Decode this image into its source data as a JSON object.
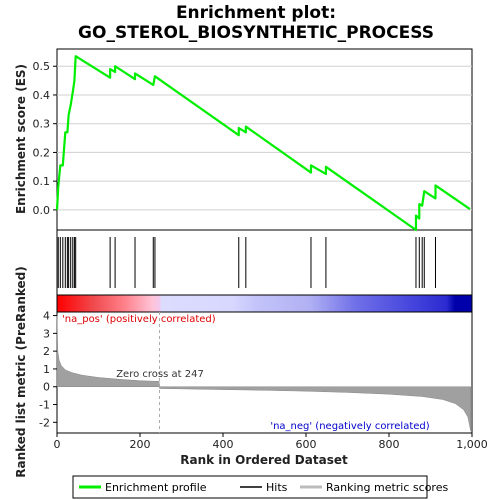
{
  "chart_data": {
    "type": "line",
    "title_line1": "Enrichment plot:",
    "title_line2": "GO_STEROL_BIOSYNTHETIC_PROCESS",
    "es_ylabel": "Enrichment score (ES)",
    "rank_ylabel": "Ranked list metric (PreRanked)",
    "xlabel": "Rank in Ordered Dataset",
    "xlim": [
      0,
      1000
    ],
    "es_ylim": [
      -0.07,
      0.56
    ],
    "rank_ylim": [
      -2.6,
      4.2
    ],
    "x_ticks": [
      "0",
      "200",
      "400",
      "600",
      "800",
      "1,000"
    ],
    "x_tick_values": [
      0,
      200,
      400,
      600,
      800,
      1000
    ],
    "es_ticks": [
      "0.0",
      "0.1",
      "0.2",
      "0.3",
      "0.4",
      "0.5"
    ],
    "es_tick_values": [
      0.0,
      0.1,
      0.2,
      0.3,
      0.4,
      0.5
    ],
    "rank_ticks": [
      "-2",
      "-1",
      "0",
      "1",
      "2",
      "3",
      "4"
    ],
    "rank_tick_values": [
      -2,
      -1,
      0,
      1,
      2,
      3,
      4
    ],
    "zero_cross_label": "Zero cross at 247",
    "zero_cross_rank": 247,
    "pos_label": "'na_pos' (positively correlated)",
    "neg_label": "'na_neg' (negatively correlated)",
    "hits": [
      3,
      8,
      14,
      20,
      25,
      28,
      33,
      38,
      42,
      45,
      128,
      140,
      188,
      232,
      236,
      438,
      455,
      612,
      648,
      865,
      873,
      880,
      885,
      912
    ],
    "es_points": [
      [
        0,
        0.0
      ],
      [
        3,
        0.08
      ],
      [
        8,
        0.155
      ],
      [
        14,
        0.155
      ],
      [
        20,
        0.27
      ],
      [
        25,
        0.27
      ],
      [
        28,
        0.33
      ],
      [
        33,
        0.365
      ],
      [
        38,
        0.41
      ],
      [
        42,
        0.45
      ],
      [
        45,
        0.535
      ],
      [
        128,
        0.46
      ],
      [
        128,
        0.49
      ],
      [
        140,
        0.48
      ],
      [
        140,
        0.5
      ],
      [
        188,
        0.455
      ],
      [
        188,
        0.475
      ],
      [
        232,
        0.435
      ],
      [
        236,
        0.465
      ],
      [
        438,
        0.26
      ],
      [
        438,
        0.285
      ],
      [
        455,
        0.27
      ],
      [
        455,
        0.29
      ],
      [
        612,
        0.13
      ],
      [
        612,
        0.155
      ],
      [
        648,
        0.125
      ],
      [
        648,
        0.15
      ],
      [
        865,
        -0.07
      ],
      [
        865,
        -0.02
      ],
      [
        873,
        -0.03
      ],
      [
        873,
        0.02
      ],
      [
        880,
        0.015
      ],
      [
        885,
        0.065
      ],
      [
        912,
        0.04
      ],
      [
        912,
        0.085
      ],
      [
        995,
        0.003
      ]
    ],
    "rank_metric_shape": [
      [
        0,
        4.0
      ],
      [
        2,
        2.0
      ],
      [
        5,
        1.5
      ],
      [
        10,
        1.2
      ],
      [
        20,
        0.95
      ],
      [
        35,
        0.8
      ],
      [
        60,
        0.65
      ],
      [
        100,
        0.52
      ],
      [
        150,
        0.42
      ],
      [
        200,
        0.34
      ],
      [
        246,
        0.3
      ],
      [
        247,
        -0.1
      ],
      [
        300,
        -0.12
      ],
      [
        400,
        -0.16
      ],
      [
        500,
        -0.2
      ],
      [
        600,
        -0.25
      ],
      [
        700,
        -0.32
      ],
      [
        800,
        -0.42
      ],
      [
        880,
        -0.55
      ],
      [
        930,
        -0.72
      ],
      [
        960,
        -0.95
      ],
      [
        980,
        -1.3
      ],
      [
        990,
        -1.7
      ],
      [
        997,
        -2.5
      ]
    ],
    "colors": {
      "es_line": "#00ee00",
      "hits": "#000000",
      "rank_fill": "#a0a0a0",
      "pos_label": "#dd0000",
      "neg_label": "#0000cc",
      "frame": "#000000"
    }
  },
  "legend": {
    "items": [
      {
        "label": "Enrichment profile",
        "icon": "green-line-icon",
        "color": "#00ee00"
      },
      {
        "label": "Hits",
        "icon": "black-line-icon",
        "color": "#000000"
      },
      {
        "label": "Ranking metric scores",
        "icon": "gray-line-icon",
        "color": "#bbbbbb"
      }
    ]
  }
}
